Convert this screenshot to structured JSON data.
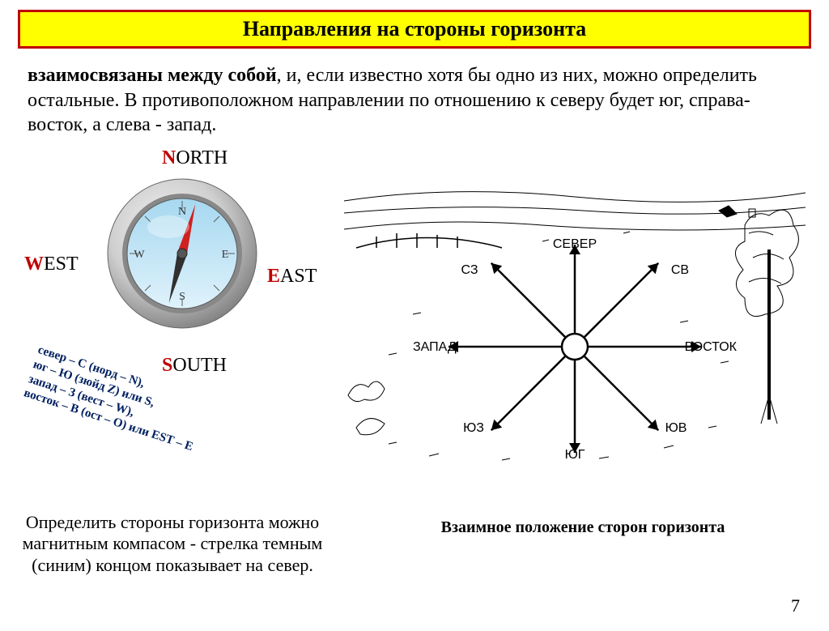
{
  "title": "Направления на стороны горизонта",
  "paragraph": {
    "bold": "взаимосвязаны между собой",
    "rest": ", и, если известно хотя бы одно из них, можно определить остальные. В противоположном направлении по отношению к северу будет юг, справа-восток, а слева - запад."
  },
  "compass": {
    "north": {
      "first": "N",
      "rest": "ORTH"
    },
    "south": {
      "first": "S",
      "rest": "OUTH"
    },
    "east": {
      "first": "E",
      "rest": "AST"
    },
    "west": {
      "first": "W",
      "rest": "EST"
    },
    "face_letters": {
      "n": "N",
      "s": "S",
      "e": "E",
      "w": "W"
    },
    "colors": {
      "rim_outer": "#cfcfcf",
      "rim_inner": "#888888",
      "face_grad_top": "#a6d8f0",
      "face_grad_bot": "#dff2fb",
      "needle_north": "#d02020",
      "needle_south": "#303030",
      "pivot": "#555555",
      "tick": "#5a5a5a"
    }
  },
  "rotated_legend": "север – С (норд – N),\nюг – Ю (зюйд Z) или S,\nзапад – З (вест – W),\nвосток – В (ост – O) или EST – E",
  "bottom_note": "Определить стороны горизонта можно магнитным компасом - стрелка темным (синим) концом показывает на север.",
  "landscape": {
    "caption": "Взаимное положение сторон горизонта",
    "dirs": {
      "n": "СЕВЕР",
      "s": "ЮГ",
      "e": "ВОСТОК",
      "w": "ЗАПАД",
      "ne": "СВ",
      "nw": "СЗ",
      "se": "ЮВ",
      "sw": "ЮЗ"
    },
    "colors": {
      "stroke": "#000000",
      "bg": "#ffffff"
    }
  },
  "page_number": "7"
}
